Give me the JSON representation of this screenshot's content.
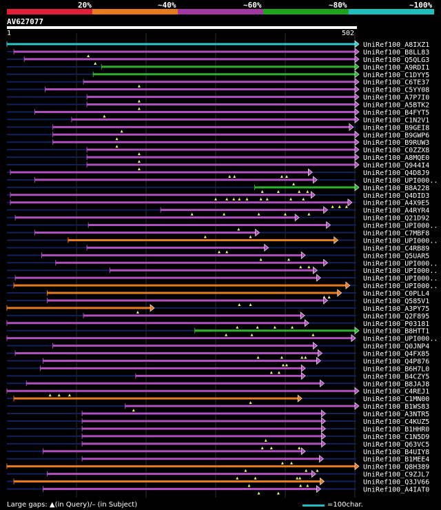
{
  "legend": {
    "labels": [
      "20%",
      "~40%",
      "~60%",
      "~80%",
      "~100%"
    ],
    "colors": [
      "#e0203a",
      "#e87b1e",
      "#a03a9e",
      "#1fa31f",
      "#1fbfbf"
    ]
  },
  "query": {
    "name": "AV627077",
    "start": "1",
    "end": "502",
    "length": 502
  },
  "colors": {
    "magenta": "#b050c0",
    "orange": "#e87b1e",
    "green": "#2cb22c",
    "cyan": "#30c8c8",
    "navy": "#14205a",
    "grid": "#2e2e2e"
  },
  "hits": [
    {
      "label": "UniRef100_A8IXZ1",
      "color": "cyan",
      "s": 0,
      "e": 500,
      "arrow": true,
      "ticks": [],
      "dim": [
        [
          0,
          500
        ]
      ]
    },
    {
      "label": "UniRef100_B8LL83",
      "color": "magenta",
      "s": 10,
      "e": 500,
      "arrow": true,
      "ticks": [
        117
      ],
      "dim": []
    },
    {
      "label": "UniRef100_Q5QLG3",
      "color": "magenta",
      "s": 25,
      "e": 500,
      "arrow": true,
      "ticks": [
        127
      ],
      "dim": []
    },
    {
      "label": "UniRef100_A9RDI1",
      "color": "green",
      "s": 136,
      "e": 500,
      "arrow": true,
      "ticks": [],
      "dim": []
    },
    {
      "label": "UniRef100_C1DYY5",
      "color": "green",
      "s": 124,
      "e": 500,
      "arrow": true,
      "ticks": [],
      "dim": []
    },
    {
      "label": "UniRef100_C6TE37",
      "color": "magenta",
      "s": 110,
      "e": 500,
      "arrow": true,
      "ticks": [
        190
      ],
      "dim": []
    },
    {
      "label": "UniRef100_C5YY08",
      "color": "magenta",
      "s": 55,
      "e": 500,
      "arrow": true,
      "ticks": [],
      "dim": []
    },
    {
      "label": "UniRef100_A7P7I0",
      "color": "magenta",
      "s": 115,
      "e": 500,
      "arrow": true,
      "ticks": [
        190
      ],
      "dim": []
    },
    {
      "label": "UniRef100_A5BTK2",
      "color": "magenta",
      "s": 115,
      "e": 500,
      "arrow": true,
      "ticks": [
        190
      ],
      "dim": []
    },
    {
      "label": "UniRef100_B4FYT5",
      "color": "magenta",
      "s": 40,
      "e": 500,
      "arrow": true,
      "ticks": [
        140
      ],
      "dim": []
    },
    {
      "label": "UniRef100_C1N2V1",
      "color": "magenta",
      "s": 93,
      "e": 500,
      "arrow": true,
      "ticks": [],
      "dim": []
    },
    {
      "label": "UniRef100_B9GEI8",
      "color": "magenta",
      "s": 66,
      "e": 492,
      "arrow": true,
      "ticks": [
        165
      ],
      "dim": []
    },
    {
      "label": "UniRef100_B9GWP6",
      "color": "magenta",
      "s": 66,
      "e": 500,
      "arrow": true,
      "ticks": [
        158
      ],
      "dim": []
    },
    {
      "label": "UniRef100_B9RUW3",
      "color": "magenta",
      "s": 66,
      "e": 500,
      "arrow": true,
      "ticks": [
        158
      ],
      "dim": []
    },
    {
      "label": "UniRef100_C0ZZX8",
      "color": "magenta",
      "s": 115,
      "e": 500,
      "arrow": true,
      "ticks": [
        190
      ],
      "dim": []
    },
    {
      "label": "UniRef100_A8MQE0",
      "color": "magenta",
      "s": 115,
      "e": 500,
      "arrow": true,
      "ticks": [
        190
      ],
      "dim": []
    },
    {
      "label": "UniRef100_Q944I4",
      "color": "magenta",
      "s": 115,
      "e": 500,
      "arrow": true,
      "ticks": [
        190
      ],
      "dim": []
    },
    {
      "label": "UniRef100_Q4D8J9",
      "color": "magenta",
      "s": 5,
      "e": 433,
      "arrow": true,
      "ticks": [
        320,
        327,
        395,
        402
      ],
      "dim": []
    },
    {
      "label": "UniRef100_UPI000..",
      "color": "magenta",
      "s": 40,
      "e": 440,
      "arrow": true,
      "ticks": [
        412
      ],
      "dim": []
    },
    {
      "label": "UniRef100_B8A228",
      "color": "green",
      "s": 356,
      "e": 500,
      "arrow": true,
      "ticks": [
        367,
        390,
        420,
        432
      ],
      "dim": []
    },
    {
      "label": "UniRef100_Q4DID3",
      "color": "magenta",
      "s": 5,
      "e": 437,
      "arrow": true,
      "ticks": [
        300,
        316,
        326,
        334,
        345,
        365,
        374,
        408,
        426
      ],
      "dim": []
    },
    {
      "label": "UniRef100_A4X9E5",
      "color": "magenta",
      "s": 5,
      "e": 490,
      "arrow": true,
      "ticks": [
        468,
        478,
        488
      ],
      "dim": []
    },
    {
      "label": "UniRef100_A4RYR4",
      "color": "magenta",
      "s": 221,
      "e": 455,
      "arrow": true,
      "ticks": [
        266,
        312,
        362,
        400,
        434
      ],
      "dim": []
    },
    {
      "label": "UniRef100_Q21D92",
      "color": "magenta",
      "s": 12,
      "e": 414,
      "arrow": true,
      "ticks": [],
      "dim": []
    },
    {
      "label": "UniRef100_UPI000..",
      "color": "magenta",
      "s": 117,
      "e": 459,
      "arrow": true,
      "ticks": [
        333
      ],
      "dim": []
    },
    {
      "label": "UniRef100_C7MBF8",
      "color": "magenta",
      "s": 40,
      "e": 357,
      "arrow": true,
      "ticks": [
        285,
        350
      ],
      "dim": []
    },
    {
      "label": "UniRef100_UPI000..",
      "color": "orange",
      "s": 88,
      "e": 470,
      "arrow": true,
      "ticks": [],
      "dim": []
    },
    {
      "label": "UniRef100_C4RB89",
      "color": "magenta",
      "s": 115,
      "e": 370,
      "arrow": true,
      "ticks": [
        305,
        316
      ],
      "dim": []
    },
    {
      "label": "UniRef100_Q5UAR5",
      "color": "magenta",
      "s": 50,
      "e": 423,
      "arrow": true,
      "ticks": [
        365,
        405
      ],
      "dim": []
    },
    {
      "label": "UniRef100_UPI000..",
      "color": "magenta",
      "s": 70,
      "e": 455,
      "arrow": true,
      "ticks": [
        422,
        434
      ],
      "dim": []
    },
    {
      "label": "UniRef100_UPI000..",
      "color": "magenta",
      "s": 148,
      "e": 440,
      "arrow": true,
      "ticks": [],
      "dim": []
    },
    {
      "label": "UniRef100_UPI000..",
      "color": "magenta",
      "s": 12,
      "e": 445,
      "arrow": true,
      "ticks": [],
      "dim": []
    },
    {
      "label": "UniRef100_UPI000..",
      "color": "orange",
      "s": 10,
      "e": 487,
      "arrow": true,
      "ticks": [],
      "dim": []
    },
    {
      "label": "UniRef100_C0PLL4",
      "color": "orange",
      "s": 58,
      "e": 475,
      "arrow": true,
      "ticks": [
        456,
        463
      ],
      "dim": []
    },
    {
      "label": "UniRef100_Q585V1",
      "color": "magenta",
      "s": 58,
      "e": 455,
      "arrow": true,
      "ticks": [
        334,
        350
      ],
      "dim": []
    },
    {
      "label": "UniRef100_A3PY75",
      "color": "orange",
      "s": 0,
      "e": 206,
      "arrow": true,
      "ticks": [
        188
      ],
      "dim": []
    },
    {
      "label": "UniRef100_Q2F895",
      "color": "magenta",
      "s": 110,
      "e": 422,
      "arrow": true,
      "ticks": [],
      "dim": []
    },
    {
      "label": "UniRef100_P03181",
      "color": "magenta",
      "s": 0,
      "e": 428,
      "arrow": true,
      "ticks": [
        331,
        360,
        385,
        410
      ],
      "dim": []
    },
    {
      "label": "UniRef100_B8HTT1",
      "color": "green",
      "s": 270,
      "e": 500,
      "arrow": true,
      "ticks": [
        315,
        352,
        440
      ],
      "dim": [
        [
          270,
          296
        ]
      ]
    },
    {
      "label": "UniRef100_UPI000..",
      "color": "magenta",
      "s": 0,
      "e": 495,
      "arrow": true,
      "ticks": [],
      "dim": []
    },
    {
      "label": "UniRef100_Q0JNP4",
      "color": "magenta",
      "s": 66,
      "e": 440,
      "arrow": true,
      "ticks": [],
      "dim": []
    },
    {
      "label": "UniRef100_Q4FX85",
      "color": "magenta",
      "s": 12,
      "e": 447,
      "arrow": true,
      "ticks": [
        361,
        395,
        424,
        429
      ],
      "dim": []
    },
    {
      "label": "UniRef100_Q4P876",
      "color": "magenta",
      "s": 52,
      "e": 445,
      "arrow": true,
      "ticks": [
        397,
        402
      ],
      "dim": []
    },
    {
      "label": "UniRef100_B6H7L0",
      "color": "magenta",
      "s": 48,
      "e": 423,
      "arrow": true,
      "ticks": [
        380,
        391
      ],
      "dim": []
    },
    {
      "label": "UniRef100_B4CZY5",
      "color": "magenta",
      "s": 185,
      "e": 423,
      "arrow": true,
      "ticks": [],
      "dim": []
    },
    {
      "label": "UniRef100_B8JAJ8",
      "color": "magenta",
      "s": 28,
      "e": 450,
      "arrow": true,
      "ticks": [],
      "dim": []
    },
    {
      "label": "UniRef100_C4REJ1",
      "color": "magenta",
      "s": 0,
      "e": 500,
      "arrow": true,
      "ticks": [
        62,
        75,
        90
      ],
      "dim": []
    },
    {
      "label": "UniRef100_C1MN00",
      "color": "orange",
      "s": 10,
      "e": 418,
      "arrow": true,
      "ticks": [
        350
      ],
      "dim": []
    },
    {
      "label": "UniRef100_B1WS83",
      "color": "magenta",
      "s": 170,
      "e": 500,
      "arrow": true,
      "ticks": [
        182
      ],
      "dim": []
    },
    {
      "label": "UniRef100_A3NTR5",
      "color": "magenta",
      "s": 108,
      "e": 452,
      "arrow": true,
      "ticks": [],
      "dim": []
    },
    {
      "label": "UniRef100_C4KUZ5",
      "color": "magenta",
      "s": 108,
      "e": 452,
      "arrow": true,
      "ticks": [],
      "dim": []
    },
    {
      "label": "UniRef100_B1HHR0",
      "color": "magenta",
      "s": 108,
      "e": 452,
      "arrow": true,
      "ticks": [],
      "dim": []
    },
    {
      "label": "UniRef100_C1N5D9",
      "color": "magenta",
      "s": 108,
      "e": 452,
      "arrow": true,
      "ticks": [
        372
      ],
      "dim": []
    },
    {
      "label": "UniRef100_Q63VC5",
      "color": "magenta",
      "s": 108,
      "e": 452,
      "arrow": true,
      "ticks": [
        367,
        380,
        420
      ],
      "dim": []
    },
    {
      "label": "UniRef100_B4UIY8",
      "color": "magenta",
      "s": 52,
      "e": 423,
      "arrow": true,
      "ticks": [],
      "dim": []
    },
    {
      "label": "UniRef100_B1MEE4",
      "color": "magenta",
      "s": 108,
      "e": 449,
      "arrow": true,
      "ticks": [
        396,
        409
      ],
      "dim": []
    },
    {
      "label": "UniRef100_Q8H389",
      "color": "orange",
      "s": 0,
      "e": 500,
      "arrow": true,
      "ticks": [
        343,
        430,
        446
      ],
      "dim": []
    },
    {
      "label": "UniRef100_C9ZJL7",
      "color": "magenta",
      "s": 58,
      "e": 438,
      "arrow": true,
      "ticks": [
        331,
        357,
        417,
        421
      ],
      "dim": []
    },
    {
      "label": "UniRef100_Q3JV66",
      "color": "orange",
      "s": 10,
      "e": 450,
      "arrow": true,
      "ticks": [
        348,
        422,
        432
      ],
      "dim": []
    },
    {
      "label": "UniRef100_A4IAT0",
      "color": "magenta",
      "s": 52,
      "e": 445,
      "arrow": true,
      "ticks": [
        362,
        390
      ],
      "dim": []
    }
  ],
  "footer": {
    "gaps_text": "Large gaps: ▲(in Query)/– (in Subject)",
    "scale_text": "=100char."
  }
}
